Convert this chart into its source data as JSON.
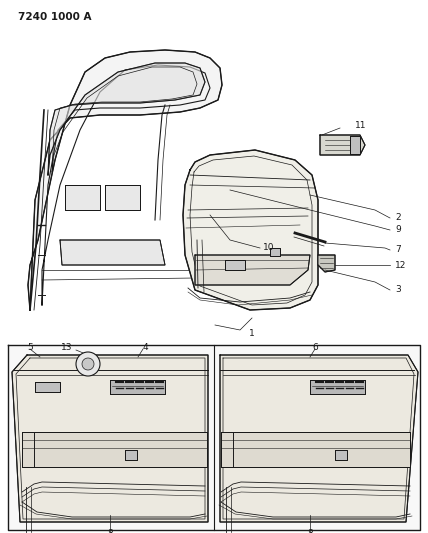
{
  "title": "7240 1000 A",
  "bg_color": "#ffffff",
  "lc": "#1a1a1a",
  "fig_width": 4.28,
  "fig_height": 5.33,
  "dpi": 100,
  "label_fs": 6.5,
  "title_fs": 7.5
}
